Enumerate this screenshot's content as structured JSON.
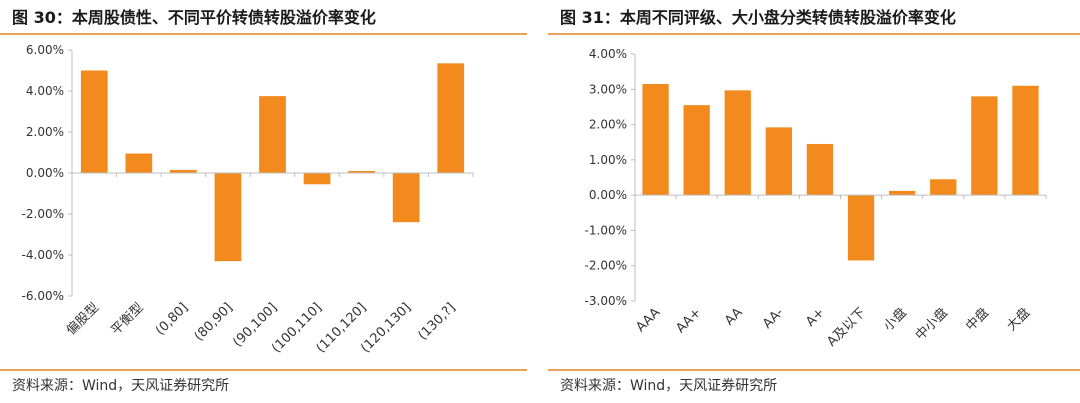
{
  "colors": {
    "bar": "#f28a1e",
    "accent_rule": "#e9a25a",
    "axis": "#bfbfbf",
    "text": "#333333"
  },
  "left": {
    "title": "图 30：本周股债性、不同平价转债转股溢价率变化",
    "source": "资料来源：Wind，天风证券研究所"
  },
  "right": {
    "title": "图 31：本周不同评级、大小盘分类转债转股溢价率变化",
    "source": "资料来源：Wind，天风证券研究所"
  },
  "chart_data": [
    {
      "type": "bar",
      "title": "本周股债性、不同平价转债转股溢价率变化",
      "categories": [
        "偏股型",
        "平衡型",
        "(0,80]",
        "(80,90]",
        "(90,100]",
        "(100,110]",
        "(110,120]",
        "(120,130]",
        "(130,?]"
      ],
      "values": [
        5.0,
        0.95,
        0.15,
        -4.3,
        3.75,
        -0.55,
        0.1,
        -2.4,
        5.35
      ],
      "unit": "%",
      "ylim": [
        -6,
        6
      ],
      "yticks": [
        6,
        4,
        2,
        0,
        -2,
        -4,
        -6
      ],
      "ytick_labels": [
        "6.00%",
        "4.00%",
        "2.00%",
        "0.00%",
        "-2.00%",
        "-4.00%",
        "-6.00%"
      ],
      "xlabel": "",
      "ylabel": "",
      "grid": false,
      "legend": "none"
    },
    {
      "type": "bar",
      "title": "本周不同评级、大小盘分类转债转股溢价率变化",
      "categories": [
        "AAA",
        "AA+",
        "AA",
        "AA-",
        "A+",
        "A及以下",
        "小盘",
        "中小盘",
        "中盘",
        "大盘"
      ],
      "values": [
        3.15,
        2.55,
        2.97,
        1.92,
        1.45,
        -1.85,
        0.12,
        0.45,
        2.8,
        3.1
      ],
      "unit": "%",
      "ylim": [
        -3,
        4
      ],
      "yticks": [
        4,
        3,
        2,
        1,
        0,
        -1,
        -2,
        -3
      ],
      "ytick_labels": [
        "4.00%",
        "3.00%",
        "2.00%",
        "1.00%",
        "0.00%",
        "-1.00%",
        "-2.00%",
        "-3.00%"
      ],
      "xlabel": "",
      "ylabel": "",
      "grid": false,
      "legend": "none"
    }
  ]
}
